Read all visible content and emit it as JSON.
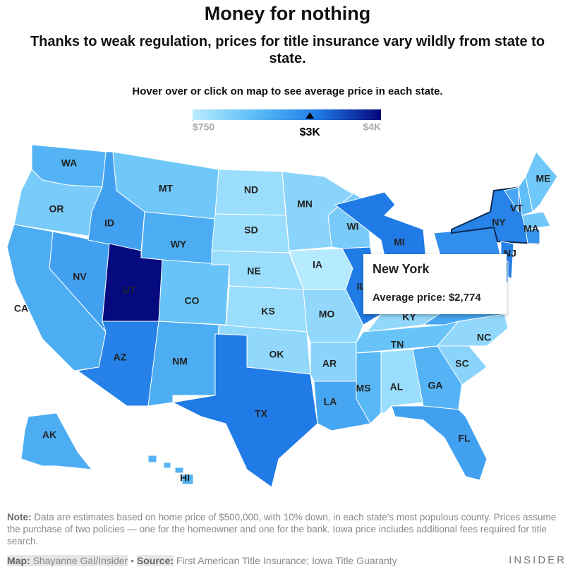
{
  "header": {
    "title": "Money for nothing",
    "subtitle": "Thanks to weak regulation, prices for title insurance vary wildly from state to state.",
    "instruction": "Hover over or click on map to see average price in each state."
  },
  "legend": {
    "range": [
      750,
      4000
    ],
    "colorscale": [
      "#b9ecff",
      "#5cbdf7",
      "#1f7ae6",
      "#05057a"
    ],
    "ticks": [
      {
        "value": 750,
        "label": "$750"
      },
      {
        "value": 4000,
        "label": "$4K"
      }
    ],
    "marker_label": "$3K"
  },
  "states": [
    {
      "abbr": "WA",
      "value": 2000
    },
    {
      "abbr": "OR",
      "value": 1500
    },
    {
      "abbr": "CA",
      "value": 2100
    },
    {
      "abbr": "NV",
      "value": 2300
    },
    {
      "abbr": "ID",
      "value": 2300
    },
    {
      "abbr": "MT",
      "value": 1600
    },
    {
      "abbr": "WY",
      "value": 2100
    },
    {
      "abbr": "UT",
      "value": 3950
    },
    {
      "abbr": "CO",
      "value": 1700
    },
    {
      "abbr": "AZ",
      "value": 2800
    },
    {
      "abbr": "NM",
      "value": 2100
    },
    {
      "abbr": "ND",
      "value": 1100
    },
    {
      "abbr": "SD",
      "value": 1100
    },
    {
      "abbr": "NE",
      "value": 1100
    },
    {
      "abbr": "KS",
      "value": 1100
    },
    {
      "abbr": "OK",
      "value": 1200
    },
    {
      "abbr": "TX",
      "value": 2900
    },
    {
      "abbr": "MN",
      "value": 1300
    },
    {
      "abbr": "IA",
      "value": 800
    },
    {
      "abbr": "MO",
      "value": 1200
    },
    {
      "abbr": "AR",
      "value": 1300
    },
    {
      "abbr": "LA",
      "value": 2200
    },
    {
      "abbr": "WI",
      "value": 1500
    },
    {
      "abbr": "IL",
      "value": 2900
    },
    {
      "abbr": "MI",
      "value": 2900
    },
    {
      "abbr": null,
      "value": 1800
    },
    {
      "abbr": null,
      "value": 2000
    },
    {
      "abbr": "KY",
      "value": 1200
    },
    {
      "abbr": "TN",
      "value": 1700
    },
    {
      "abbr": "MS",
      "value": 1900
    },
    {
      "abbr": "AL",
      "value": 1100
    },
    {
      "abbr": "GA",
      "value": 2000
    },
    {
      "abbr": "FL",
      "value": 2300
    },
    {
      "abbr": "SC",
      "value": 1300
    },
    {
      "abbr": "NC",
      "value": 1200
    },
    {
      "abbr": null,
      "value": 2200
    },
    {
      "abbr": null,
      "value": 1700
    },
    {
      "abbr": null,
      "value": 2600
    },
    {
      "abbr": "NY",
      "value": 2774,
      "name": "New York",
      "tooltip": "Average price: $2,774"
    },
    {
      "abbr": "VT",
      "value": 2200
    },
    {
      "abbr": null,
      "value": 1800
    },
    {
      "abbr": "ME",
      "value": 1600
    },
    {
      "abbr": "MA",
      "value": 1600
    },
    {
      "abbr": null,
      "value": 2500
    },
    {
      "abbr": "NJ",
      "value": 2800
    },
    {
      "abbr": null,
      "value": 2400
    },
    {
      "abbr": "AK",
      "value": 2100
    },
    {
      "abbr": "HI",
      "value": 2000
    }
  ],
  "footer": {
    "note_label": "Note:",
    "note": "Data are estimates based on home price of $500,000, with 10% down, in each state's most populous county. Prices assume the purchase of two policies — one for the homeowner and one for the bank. Iowa price includes additional fees required for title search.",
    "map_label": "Map:",
    "map": "Shayanne Gal/Insider",
    "source_label": "Source:",
    "source": "First American Title Insurance; Iowa Title Guaranty",
    "brand": "INSIDER"
  }
}
